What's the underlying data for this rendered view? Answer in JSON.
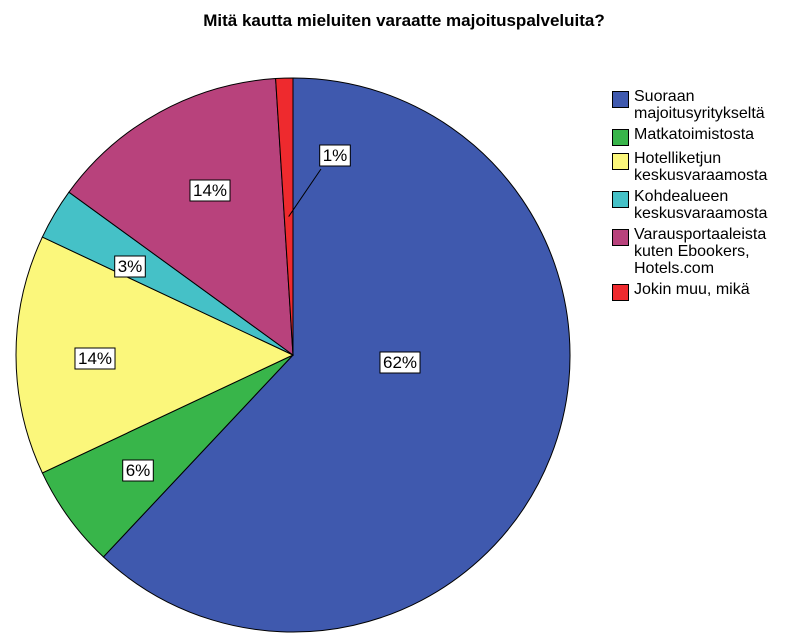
{
  "chart_data": {
    "type": "pie",
    "title": "Mitä kautta mieluiten varaatte majoituspalveluita?",
    "categories": [
      "Suoraan majoitusyritykseltä",
      "Matkatoimistosta",
      "Hotelliketjun keskusvaraamosta",
      "Kohdealueen keskusvaraamosta",
      "Varausportaaleista kuten Ebookers, Hotels.com",
      "Jokin muu, mikä"
    ],
    "values": [
      62,
      6,
      14,
      3,
      14,
      1
    ],
    "value_labels": [
      "62%",
      "6%",
      "14%",
      "3%",
      "14%",
      "1%"
    ],
    "colors": [
      "#3f59ae",
      "#38b54a",
      "#fbf77b",
      "#45c1c7",
      "#b8427c",
      "#ee2a2e"
    ],
    "legend": "right"
  }
}
